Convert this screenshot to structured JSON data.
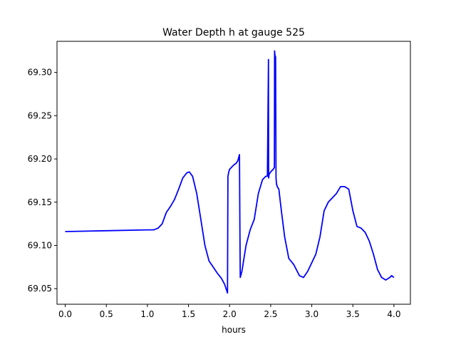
{
  "chart_data": {
    "type": "line",
    "title": "Water Depth h at gauge 525",
    "xlabel": "hours",
    "ylabel": "",
    "xlim": [
      -0.1,
      4.2
    ],
    "ylim": [
      69.032,
      69.336
    ],
    "xticks": [
      0.0,
      0.5,
      1.0,
      1.5,
      2.0,
      2.5,
      3.0,
      3.5,
      4.0
    ],
    "xtick_labels": [
      "0.0",
      "0.5",
      "1.0",
      "1.5",
      "2.0",
      "2.5",
      "3.0",
      "3.5",
      "4.0"
    ],
    "yticks": [
      69.05,
      69.1,
      69.15,
      69.2,
      69.25,
      69.3
    ],
    "ytick_labels": [
      "69.05",
      "69.10",
      "69.15",
      "69.20",
      "69.25",
      "69.30"
    ],
    "grid": false,
    "series": [
      {
        "color": "#0000ff",
        "x": [
          0.0,
          0.5,
          1.0,
          1.08,
          1.13,
          1.18,
          1.23,
          1.28,
          1.33,
          1.38,
          1.43,
          1.48,
          1.51,
          1.55,
          1.6,
          1.65,
          1.7,
          1.75,
          1.8,
          1.85,
          1.9,
          1.94,
          1.975,
          1.98,
          1.99,
          2.0,
          2.02,
          2.05,
          2.08,
          2.1,
          2.12,
          2.125,
          2.13,
          2.15,
          2.2,
          2.25,
          2.3,
          2.35,
          2.4,
          2.44,
          2.46,
          2.473,
          2.475,
          2.478,
          2.48,
          2.5,
          2.53,
          2.545,
          2.548,
          2.552,
          2.56,
          2.565,
          2.572,
          2.575,
          2.58,
          2.6,
          2.63,
          2.67,
          2.72,
          2.78,
          2.85,
          2.9,
          2.95,
          3.0,
          3.05,
          3.1,
          3.15,
          3.2,
          3.25,
          3.3,
          3.35,
          3.4,
          3.45,
          3.5,
          3.55,
          3.6,
          3.65,
          3.7,
          3.75,
          3.8,
          3.85,
          3.9,
          3.95,
          3.97,
          4.0
        ],
        "y": [
          69.116,
          69.117,
          69.118,
          69.118,
          69.12,
          69.125,
          69.138,
          69.145,
          69.153,
          69.165,
          69.178,
          69.184,
          69.185,
          69.18,
          69.16,
          69.13,
          69.1,
          69.082,
          69.075,
          69.068,
          69.062,
          69.055,
          69.045,
          69.18,
          69.185,
          69.188,
          69.19,
          69.193,
          69.195,
          69.198,
          69.205,
          69.12,
          69.063,
          69.07,
          69.1,
          69.118,
          69.13,
          69.16,
          69.176,
          69.18,
          69.18,
          69.315,
          69.178,
          69.18,
          69.182,
          69.185,
          69.188,
          69.19,
          69.325,
          69.32,
          69.318,
          69.178,
          69.17,
          69.17,
          69.168,
          69.165,
          69.14,
          69.11,
          69.085,
          69.078,
          69.065,
          69.063,
          69.07,
          69.08,
          69.09,
          69.11,
          69.14,
          69.15,
          69.155,
          69.16,
          69.168,
          69.168,
          69.165,
          69.14,
          69.122,
          69.12,
          69.115,
          69.105,
          69.09,
          69.072,
          69.063,
          69.06,
          69.063,
          69.065,
          69.063
        ]
      }
    ]
  }
}
